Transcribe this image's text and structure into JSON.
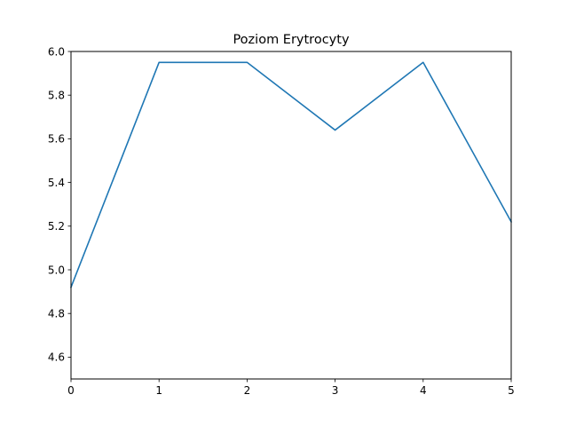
{
  "chart_data": {
    "type": "line",
    "title": "Poziom Erytrocyty",
    "xlabel": "",
    "ylabel": "",
    "xlim": [
      0,
      5
    ],
    "ylim": [
      4.5,
      6.0
    ],
    "x_ticks": [
      "0",
      "1",
      "2",
      "3",
      "4",
      "5"
    ],
    "y_ticks": [
      "4.6",
      "4.8",
      "5.0",
      "5.2",
      "5.4",
      "5.6",
      "5.8",
      "6.0"
    ],
    "grid": false,
    "series": [
      {
        "x": [
          0,
          1,
          2,
          3,
          4,
          5
        ],
        "values": [
          4.92,
          5.95,
          5.95,
          5.64,
          5.95,
          5.22
        ],
        "color": "#1f77b4"
      }
    ]
  }
}
